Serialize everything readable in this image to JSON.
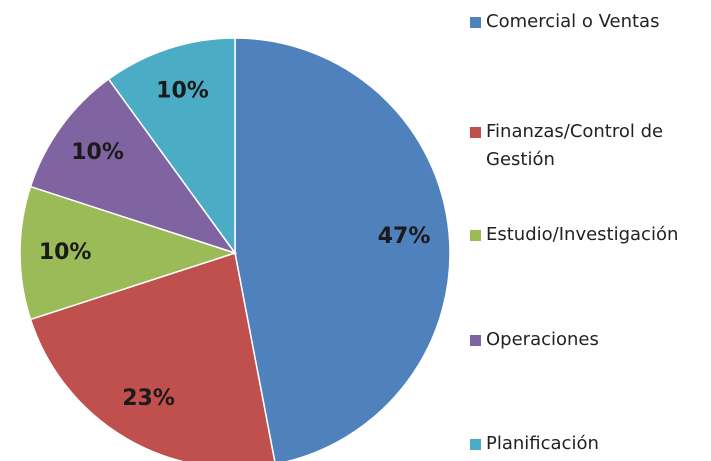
{
  "chart_data": {
    "type": "pie",
    "categories": [
      "Comercial o Ventas",
      "Finanzas/Control de Gestión",
      "Estudio/Investigación",
      "Operaciones",
      "Planificación"
    ],
    "values": [
      47,
      23,
      10,
      10,
      10
    ],
    "value_labels": [
      "47%",
      "23%",
      "10%",
      "10%",
      "10%"
    ],
    "colors": [
      "#4f81bd",
      "#c0504d",
      "#9bbb59",
      "#8064a2",
      "#4bacc6"
    ],
    "legend": "right"
  }
}
